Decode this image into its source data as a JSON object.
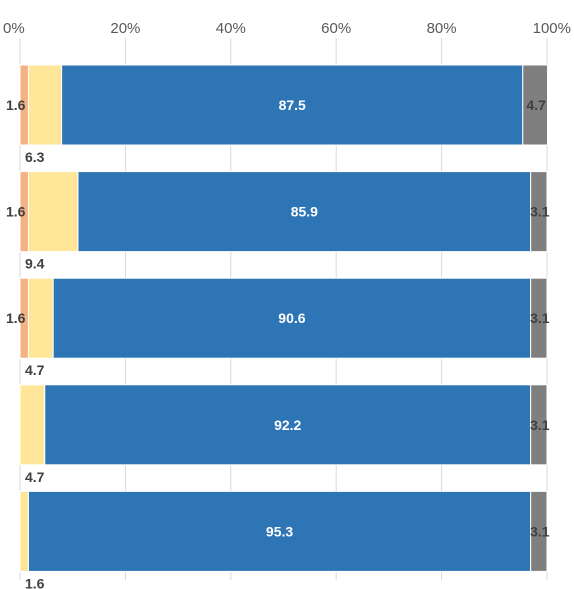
{
  "chart_data": {
    "type": "bar",
    "orientation": "horizontal",
    "stacked": "percent",
    "title": "",
    "xlabel": "",
    "ylabel": "",
    "xlim": [
      0,
      100
    ],
    "x_ticks": [
      "0%",
      "20%",
      "40%",
      "60%",
      "80%",
      "100%"
    ],
    "x_tick_values": [
      0,
      20,
      40,
      60,
      80,
      100
    ],
    "grid": "vertical",
    "legend": "none",
    "category_labels_shown": false,
    "rows": 5,
    "series": [
      {
        "color": "#f4b183",
        "values": [
          1.6,
          1.6,
          1.6,
          0,
          0
        ]
      },
      {
        "color": "#ffe699",
        "values": [
          6.3,
          9.4,
          4.7,
          4.7,
          1.6
        ]
      },
      {
        "color": "#2e75b6",
        "values": [
          87.5,
          85.9,
          90.6,
          92.2,
          95.3
        ]
      },
      {
        "color": "#7f7f7f",
        "values": [
          4.7,
          3.1,
          3.1,
          3.1,
          3.1
        ]
      }
    ],
    "data_labels": [
      [
        "1.6",
        "6.3",
        "87.5",
        "4.7"
      ],
      [
        "1.6",
        "9.4",
        "85.9",
        "3.1"
      ],
      [
        "1.6",
        "4.7",
        "90.6",
        "3.1"
      ],
      [
        "",
        "4.7",
        "92.2",
        "3.1"
      ],
      [
        "",
        "1.6",
        "95.3",
        "3.1"
      ]
    ]
  }
}
